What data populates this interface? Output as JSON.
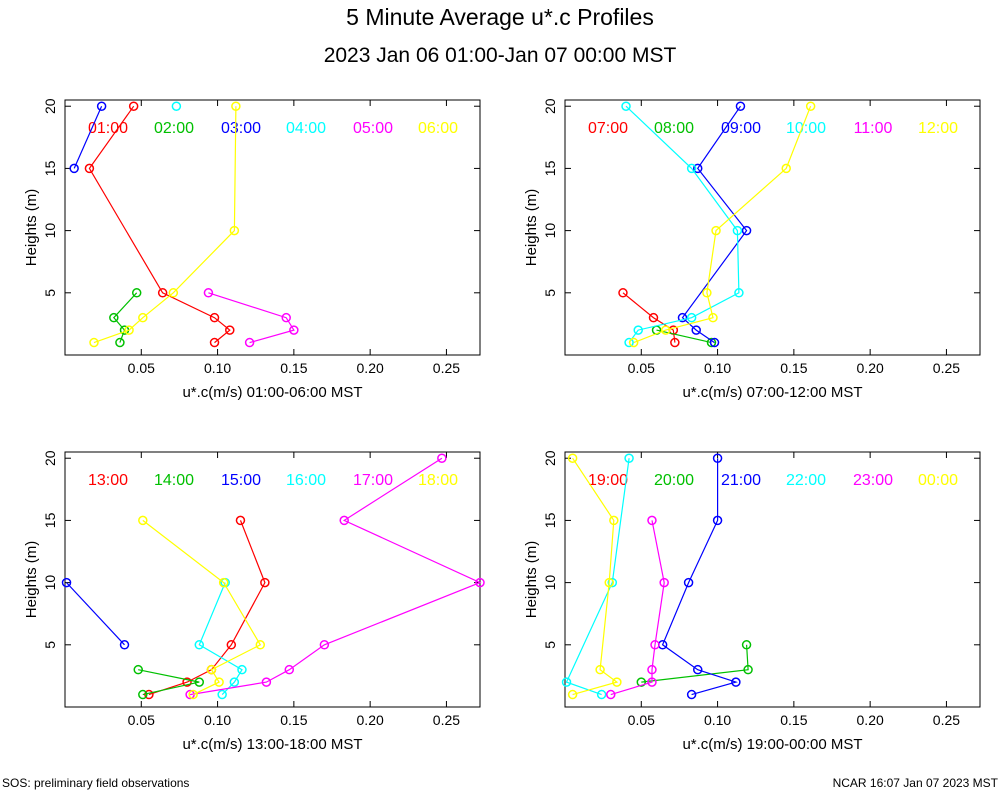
{
  "title": "5 Minute Average u*.c Profiles",
  "subtitle": "2023 Jan 06 01:00-Jan 07 00:00 MST",
  "footer_left": "SOS: preliminary field observations",
  "footer_right": "NCAR 16:07 Jan 07 2023 MST",
  "colors": [
    "#ff0000",
    "#00c000",
    "#0000ff",
    "#00ffff",
    "#ff00ff",
    "#ffff00"
  ],
  "chart_data": [
    {
      "type": "line",
      "xlabel": "u*.c(m/s) 01:00-06:00 MST",
      "ylabel": "Heights (m)",
      "xlim": [
        0.0,
        0.272
      ],
      "ylim": [
        0,
        20.5
      ],
      "xticks": [
        "0.05",
        "0.10",
        "0.15",
        "0.20",
        "0.25"
      ],
      "xtick_values": [
        0.05,
        0.1,
        0.15,
        0.2,
        0.25
      ],
      "yticks": [
        "5",
        "10",
        "15",
        "20"
      ],
      "ytick_values": [
        5,
        10,
        15,
        20
      ],
      "series": [
        {
          "name": "01:00",
          "points": [
            [
              0.098,
              1
            ],
            [
              0.108,
              2
            ],
            [
              0.098,
              3
            ],
            [
              0.064,
              5
            ],
            [
              0.016,
              15
            ],
            [
              0.045,
              20
            ]
          ]
        },
        {
          "name": "02:00",
          "points": [
            [
              0.036,
              1
            ],
            [
              0.039,
              2
            ],
            [
              0.032,
              3
            ],
            [
              0.047,
              5
            ]
          ]
        },
        {
          "name": "03:00",
          "points": [
            [
              0.006,
              15
            ],
            [
              0.024,
              20
            ]
          ]
        },
        {
          "name": "04:00",
          "points": [
            [
              0.073,
              20
            ]
          ]
        },
        {
          "name": "05:00",
          "points": [
            [
              0.121,
              1
            ],
            [
              0.15,
              2
            ],
            [
              0.145,
              3
            ],
            [
              0.094,
              5
            ]
          ]
        },
        {
          "name": "06:00",
          "points": [
            [
              0.019,
              1
            ],
            [
              0.042,
              2
            ],
            [
              0.051,
              3
            ],
            [
              0.071,
              5
            ],
            [
              0.111,
              10
            ],
            [
              0.112,
              20
            ]
          ]
        }
      ]
    },
    {
      "type": "line",
      "xlabel": "u*.c(m/s) 07:00-12:00 MST",
      "ylabel": "Heights (m)",
      "xlim": [
        0.0,
        0.272
      ],
      "ylim": [
        0,
        20.5
      ],
      "xticks": [
        "0.05",
        "0.10",
        "0.15",
        "0.20",
        "0.25"
      ],
      "xtick_values": [
        0.05,
        0.1,
        0.15,
        0.2,
        0.25
      ],
      "yticks": [
        "5",
        "10",
        "15",
        "20"
      ],
      "ytick_values": [
        5,
        10,
        15,
        20
      ],
      "series": [
        {
          "name": "07:00",
          "points": [
            [
              0.072,
              1
            ],
            [
              0.071,
              2
            ],
            [
              0.058,
              3
            ],
            [
              0.038,
              5
            ]
          ]
        },
        {
          "name": "08:00",
          "points": [
            [
              0.096,
              1
            ],
            [
              0.06,
              2
            ]
          ]
        },
        {
          "name": "09:00",
          "points": [
            [
              0.098,
              1
            ],
            [
              0.086,
              2
            ],
            [
              0.077,
              3
            ],
            [
              0.119,
              10
            ],
            [
              0.087,
              15
            ],
            [
              0.115,
              20
            ]
          ]
        },
        {
          "name": "10:00",
          "points": [
            [
              0.042,
              1
            ],
            [
              0.048,
              2
            ],
            [
              0.083,
              3
            ],
            [
              0.114,
              5
            ],
            [
              0.113,
              10
            ],
            [
              0.083,
              15
            ],
            [
              0.04,
              20
            ]
          ]
        },
        {
          "name": "11:00",
          "points": []
        },
        {
          "name": "12:00",
          "points": [
            [
              0.045,
              1
            ],
            [
              0.066,
              2
            ],
            [
              0.097,
              3
            ],
            [
              0.093,
              5
            ],
            [
              0.099,
              10
            ],
            [
              0.145,
              15
            ],
            [
              0.161,
              20
            ]
          ]
        }
      ]
    },
    {
      "type": "line",
      "xlabel": "u*.c(m/s) 13:00-18:00 MST",
      "ylabel": "Heights (m)",
      "xlim": [
        0.0,
        0.272
      ],
      "ylim": [
        0,
        20.5
      ],
      "xticks": [
        "0.05",
        "0.10",
        "0.15",
        "0.20",
        "0.25"
      ],
      "xtick_values": [
        0.05,
        0.1,
        0.15,
        0.2,
        0.25
      ],
      "yticks": [
        "5",
        "10",
        "15",
        "20"
      ],
      "ytick_values": [
        5,
        10,
        15,
        20
      ],
      "series": [
        {
          "name": "13:00",
          "points": [
            [
              0.055,
              1
            ],
            [
              0.08,
              2
            ],
            [
              0.096,
              3
            ],
            [
              0.109,
              5
            ],
            [
              0.131,
              10
            ],
            [
              0.115,
              15
            ]
          ]
        },
        {
          "name": "14:00",
          "points": [
            [
              0.051,
              1
            ],
            [
              0.088,
              2
            ],
            [
              0.048,
              3
            ]
          ]
        },
        {
          "name": "15:00",
          "points": [
            [
              0.039,
              5
            ],
            [
              0.001,
              10
            ]
          ]
        },
        {
          "name": "16:00",
          "points": [
            [
              0.103,
              1
            ],
            [
              0.111,
              2
            ],
            [
              0.116,
              3
            ],
            [
              0.088,
              5
            ],
            [
              0.105,
              10
            ]
          ]
        },
        {
          "name": "17:00",
          "points": [
            [
              0.082,
              1
            ],
            [
              0.132,
              2
            ],
            [
              0.147,
              3
            ],
            [
              0.17,
              5
            ],
            [
              0.272,
              10
            ],
            [
              0.183,
              15
            ],
            [
              0.247,
              20
            ]
          ]
        },
        {
          "name": "18:00",
          "points": [
            [
              0.084,
              1
            ],
            [
              0.101,
              2
            ],
            [
              0.096,
              3
            ],
            [
              0.128,
              5
            ],
            [
              0.104,
              10
            ],
            [
              0.051,
              15
            ]
          ]
        }
      ]
    },
    {
      "type": "line",
      "xlabel": "u*.c(m/s) 19:00-00:00 MST",
      "ylabel": "Heights (m)",
      "xlim": [
        0.0,
        0.272
      ],
      "ylim": [
        0,
        20.5
      ],
      "xticks": [
        "0.05",
        "0.10",
        "0.15",
        "0.20",
        "0.25"
      ],
      "xtick_values": [
        0.05,
        0.1,
        0.15,
        0.2,
        0.25
      ],
      "yticks": [
        "5",
        "10",
        "15",
        "20"
      ],
      "ytick_values": [
        5,
        10,
        15,
        20
      ],
      "series": [
        {
          "name": "19:00",
          "points": []
        },
        {
          "name": "20:00",
          "points": [
            [
              0.05,
              2
            ],
            [
              0.12,
              3
            ],
            [
              0.119,
              5
            ]
          ]
        },
        {
          "name": "21:00",
          "points": [
            [
              0.083,
              1
            ],
            [
              0.112,
              2
            ],
            [
              0.087,
              3
            ],
            [
              0.064,
              5
            ],
            [
              0.081,
              10
            ],
            [
              0.1,
              15
            ],
            [
              0.1,
              20
            ]
          ]
        },
        {
          "name": "22:00",
          "points": [
            [
              0.024,
              1
            ],
            [
              0.001,
              2
            ],
            [
              0.031,
              10
            ],
            [
              0.042,
              20
            ]
          ]
        },
        {
          "name": "23:00",
          "points": [
            [
              0.03,
              1
            ],
            [
              0.057,
              2
            ],
            [
              0.057,
              3
            ],
            [
              0.059,
              5
            ],
            [
              0.065,
              10
            ],
            [
              0.057,
              15
            ]
          ]
        },
        {
          "name": "00:00",
          "points": [
            [
              0.005,
              1
            ],
            [
              0.034,
              2
            ],
            [
              0.023,
              3
            ],
            [
              0.029,
              10
            ],
            [
              0.032,
              15
            ],
            [
              0.005,
              20
            ]
          ]
        }
      ]
    }
  ]
}
